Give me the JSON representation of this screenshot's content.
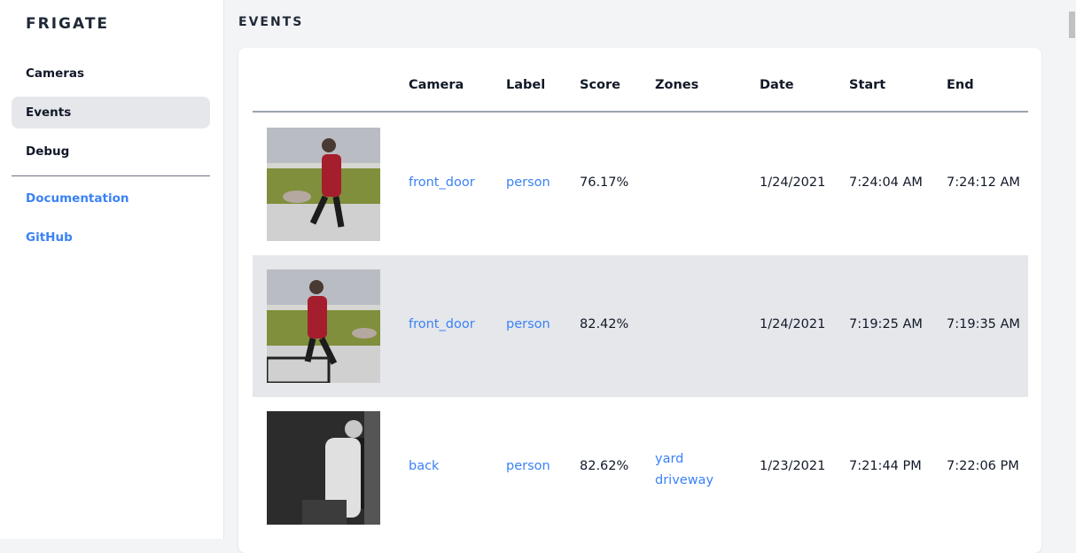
{
  "sidebar": {
    "brand": "FRIGATE",
    "items": [
      {
        "label": "Cameras"
      },
      {
        "label": "Events"
      },
      {
        "label": "Debug"
      }
    ],
    "links": [
      {
        "label": "Documentation"
      },
      {
        "label": "GitHub"
      }
    ]
  },
  "page": {
    "title": "EVENTS"
  },
  "table": {
    "headers": [
      "Camera",
      "Label",
      "Score",
      "Zones",
      "Date",
      "Start",
      "End"
    ],
    "rows": [
      {
        "camera": "front_door",
        "label": "person",
        "score": "76.17%",
        "zones": [
          "",
          ""
        ],
        "date": "1/24/2021",
        "start": "7:24:04 AM",
        "end": "7:24:12 AM"
      },
      {
        "camera": "front_door",
        "label": "person",
        "score": "82.42%",
        "zones": [
          "",
          ""
        ],
        "date": "1/24/2021",
        "start": "7:19:25 AM",
        "end": "7:19:35 AM"
      },
      {
        "camera": "back",
        "label": "person",
        "score": "82.62%",
        "zones": [
          "yard",
          "driveway"
        ],
        "date": "1/23/2021",
        "start": "7:21:44 PM",
        "end": "7:22:06 PM"
      }
    ]
  }
}
